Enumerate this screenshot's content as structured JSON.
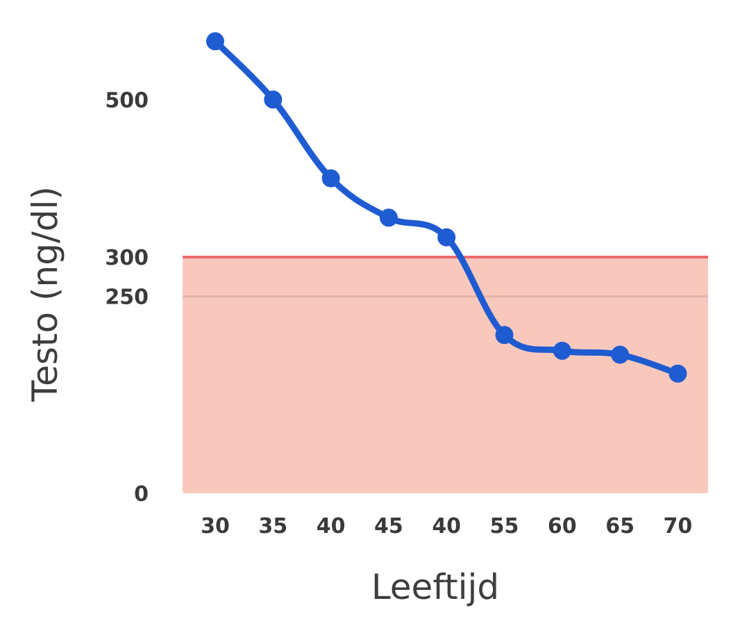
{
  "chart_data": {
    "type": "line",
    "categories": [
      "30",
      "35",
      "40",
      "45",
      "40",
      "55",
      "60",
      "65",
      "70"
    ],
    "series": [
      {
        "values": [
          574,
          500,
          400,
          350,
          325,
          201,
          181,
          176,
          152
        ]
      }
    ],
    "xlabel": "Leeftijd",
    "ylabel": "Testo (ng/dl)",
    "yticks": [
      {
        "value": 0,
        "label": "0"
      },
      {
        "value": 250,
        "label": "250"
      },
      {
        "value": 300,
        "label": "300"
      },
      {
        "value": 500,
        "label": "500"
      }
    ],
    "threshold": {
      "value": 300,
      "shaded_below": true
    },
    "reference_line": 250,
    "ylim": [
      0,
      600
    ],
    "grid": false,
    "colors": {
      "line": "#1f5bd1",
      "threshold": "#ee6b6b",
      "shade": "#f9c8bd",
      "reference": "#e3b4ab",
      "text": "#3a3a3a"
    }
  }
}
